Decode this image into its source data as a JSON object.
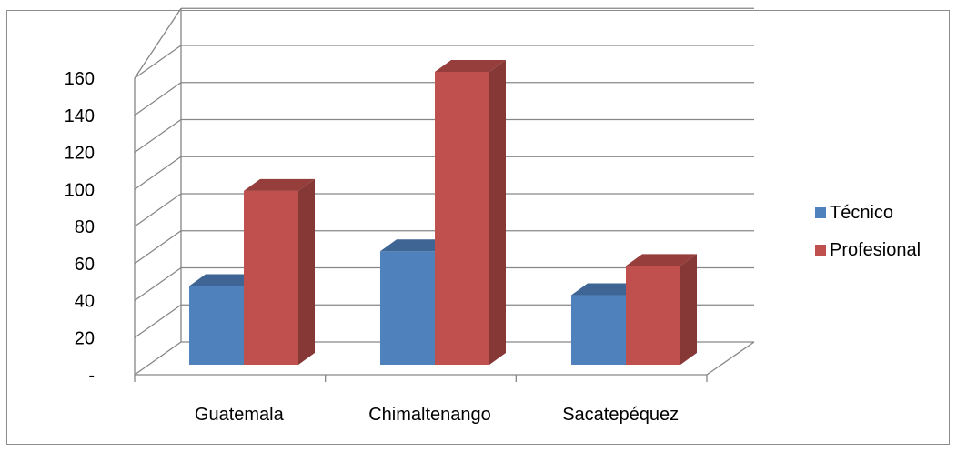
{
  "chart_data": {
    "type": "bar",
    "style": "3d-clustered-column",
    "categories": [
      "Guatemala",
      "Chimaltenango",
      "Sacatepéquez"
    ],
    "series": [
      {
        "name": "Técnico",
        "color": "#4f81bd",
        "values": [
          43,
          62,
          38
        ]
      },
      {
        "name": "Profesional",
        "color": "#c0504d",
        "values": [
          95,
          160,
          54
        ]
      }
    ],
    "y_ticks": [
      "-",
      "20",
      "40",
      "60",
      "80",
      "100",
      "120",
      "140",
      "160"
    ],
    "ylim": [
      0,
      160
    ],
    "grid": true,
    "legend_position": "right"
  }
}
